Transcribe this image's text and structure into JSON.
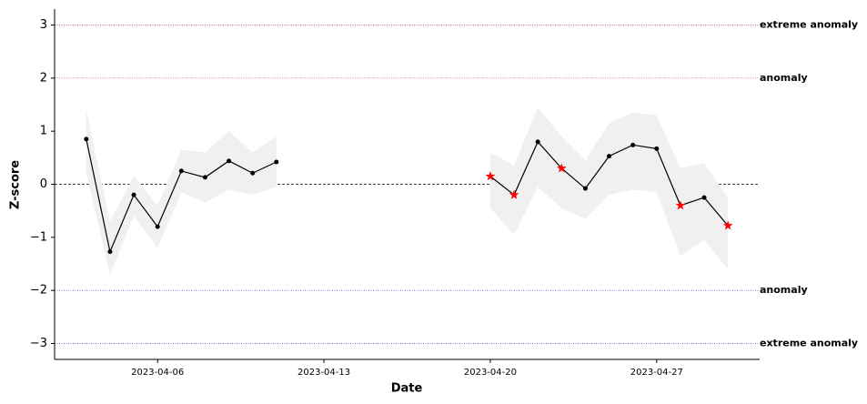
{
  "chart_data": {
    "type": "line",
    "xlabel": "Date",
    "ylabel": "Z-score",
    "xlim": [
      "2023-04-01T16:00Z",
      "2023-05-01T08:00Z"
    ],
    "xticks": [
      "2023-04-06",
      "2023-04-13",
      "2023-04-20",
      "2023-04-27"
    ],
    "ylim": [
      -3.3,
      3.3
    ],
    "yticks": [
      {
        "value": -3,
        "label": "−3"
      },
      {
        "value": -2,
        "label": "−2"
      },
      {
        "value": -1,
        "label": "−1"
      },
      0,
      1,
      2,
      3
    ],
    "band_color": "#f0f0f0",
    "line_color": "#000000",
    "anomaly_color": "#ff0000",
    "reference_lines": [
      {
        "value": 3,
        "label": "extreme anomaly",
        "color": "#c0392b"
      },
      {
        "value": 2,
        "label": "anomaly",
        "color": "#c0392b"
      },
      {
        "value": 0,
        "color": "#000000"
      },
      {
        "value": -2,
        "label": "anomaly",
        "color": "#2c3e9f"
      },
      {
        "value": -3,
        "label": "extreme anomaly",
        "color": "#2c3e9f"
      }
    ],
    "series": [
      {
        "x": [
          "2023-04-03",
          "2023-04-04",
          "2023-04-05",
          "2023-04-06",
          "2023-04-07",
          "2023-04-08",
          "2023-04-09",
          "2023-04-10",
          "2023-04-11"
        ],
        "values": [
          0.85,
          -1.27,
          -0.2,
          -0.8,
          0.25,
          0.13,
          0.44,
          0.21,
          0.42
        ],
        "upper": [
          1.4,
          -0.7,
          0.15,
          -0.4,
          0.65,
          0.6,
          1.0,
          0.6,
          0.9
        ],
        "lower": [
          0.2,
          -1.7,
          -0.6,
          -1.2,
          -0.15,
          -0.35,
          -0.1,
          -0.2,
          -0.05
        ],
        "markers": [
          "o",
          "o",
          "o",
          "o",
          "o",
          "o",
          "o",
          "o",
          "o"
        ]
      },
      {
        "x": [
          "2023-04-20",
          "2023-04-21",
          "2023-04-22",
          "2023-04-23",
          "2023-04-24",
          "2023-04-25",
          "2023-04-26",
          "2023-04-27",
          "2023-04-28",
          "2023-04-29",
          "2023-04-30"
        ],
        "values": [
          0.15,
          -0.2,
          0.8,
          0.3,
          -0.08,
          0.53,
          0.74,
          0.67,
          -0.4,
          -0.25,
          -0.78
        ],
        "upper": [
          0.6,
          0.35,
          1.45,
          0.9,
          0.45,
          1.15,
          1.35,
          1.3,
          0.3,
          0.4,
          -0.25
        ],
        "lower": [
          -0.45,
          -0.95,
          -0.05,
          -0.45,
          -0.65,
          -0.2,
          -0.1,
          -0.15,
          -1.35,
          -1.05,
          -1.6
        ],
        "markers": [
          "*",
          "*",
          "o",
          "*",
          "o",
          "o",
          "o",
          "o",
          "*",
          "o",
          "*"
        ]
      }
    ]
  }
}
